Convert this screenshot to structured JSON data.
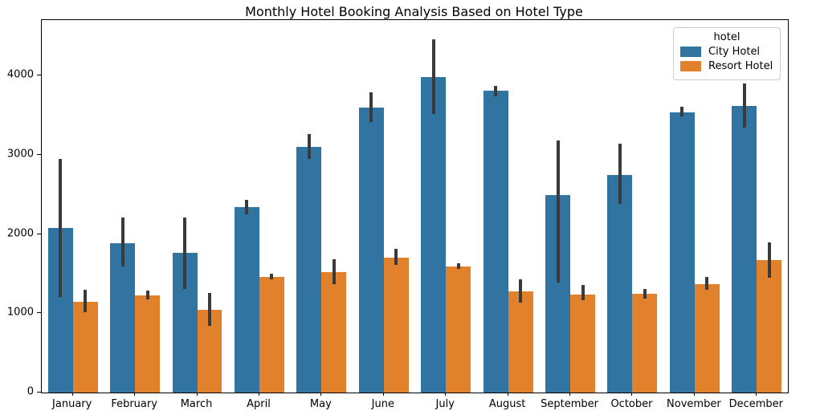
{
  "chart_data": {
    "type": "bar",
    "title": "Monthly Hotel Booking Analysis Based on Hotel Type",
    "xlabel": "",
    "ylabel": "",
    "categories": [
      "January",
      "February",
      "March",
      "April",
      "May",
      "June",
      "July",
      "August",
      "September",
      "October",
      "November",
      "December"
    ],
    "series": [
      {
        "name": "City Hotel",
        "color": "#3274a1",
        "values": [
          2075,
          1880,
          1760,
          2340,
          3100,
          3595,
          3985,
          3805,
          2490,
          2745,
          3535,
          3620
        ],
        "error_low": [
          1210,
          1590,
          1305,
          2250,
          2950,
          3415,
          3510,
          3740,
          1385,
          2385,
          3480,
          3345
        ],
        "error_high": [
          2945,
          2205,
          2210,
          2435,
          3260,
          3785,
          4460,
          3865,
          3185,
          3140,
          3610,
          3900
        ]
      },
      {
        "name": "Resort Hotel",
        "color": "#e1812c",
        "values": [
          1145,
          1225,
          1045,
          1460,
          1520,
          1705,
          1595,
          1280,
          1240,
          1245,
          1370,
          1675
        ],
        "error_low": [
          1010,
          1180,
          840,
          1425,
          1365,
          1610,
          1560,
          1130,
          1160,
          1180,
          1295,
          1450
        ],
        "error_high": [
          1295,
          1290,
          1260,
          1495,
          1680,
          1810,
          1635,
          1430,
          1355,
          1305,
          1455,
          1895
        ]
      }
    ],
    "legend": {
      "title": "hotel",
      "position": "upper right"
    },
    "yticks": [
      0,
      1000,
      2000,
      3000,
      4000
    ],
    "ytick_labels": [
      "0",
      "1000",
      "2000",
      "3000",
      "4000"
    ],
    "ylim": [
      0,
      4700
    ],
    "grid": false,
    "error_bar_color": "#3a3a3a"
  }
}
